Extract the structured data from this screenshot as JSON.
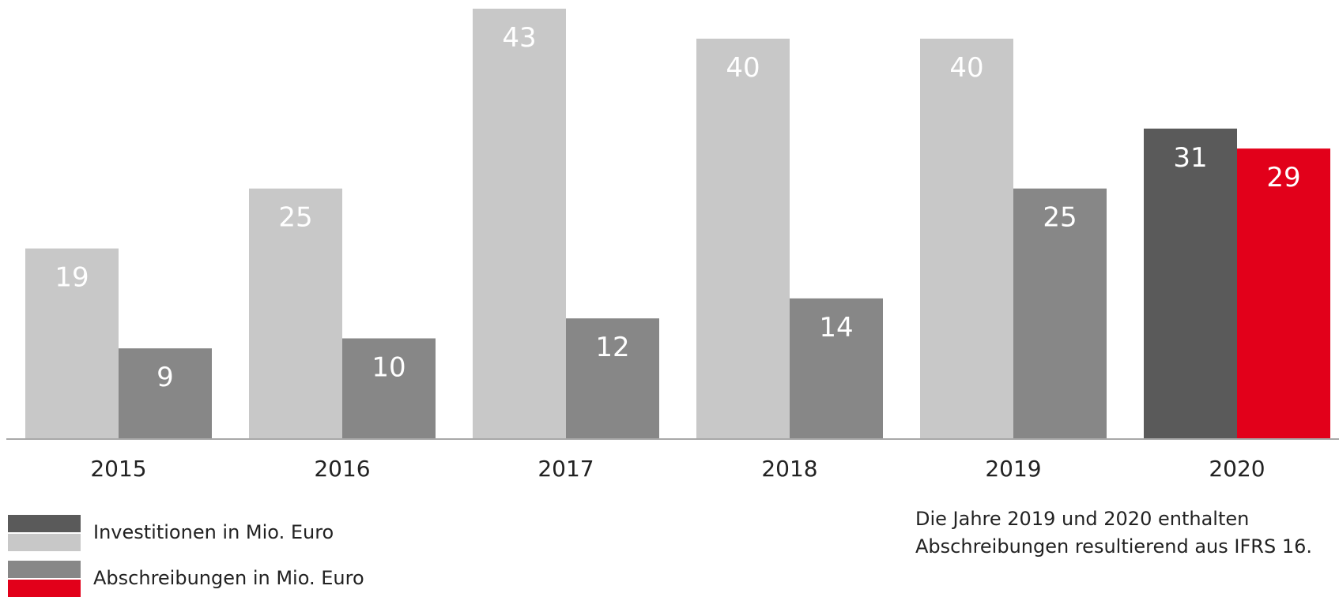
{
  "chart_data": {
    "type": "bar",
    "title": "",
    "xlabel": "",
    "ylabel": "",
    "ylim": [
      0,
      43
    ],
    "grid": false,
    "categories": [
      "2015",
      "2016",
      "2017",
      "2018",
      "2019",
      "2020"
    ],
    "series": [
      {
        "name": "Investitionen in Mio. Euro",
        "values": [
          19,
          25,
          43,
          40,
          40,
          31
        ],
        "colors": [
          "#c8c8c8",
          "#c8c8c8",
          "#c8c8c8",
          "#c8c8c8",
          "#c8c8c8",
          "#5a5a5a"
        ]
      },
      {
        "name": "Abschreibungen in Mio. Euro",
        "values": [
          9,
          10,
          12,
          14,
          25,
          29
        ],
        "colors": [
          "#878787",
          "#878787",
          "#878787",
          "#878787",
          "#878787",
          "#e2001a"
        ]
      }
    ],
    "legend_position": "bottom-left"
  },
  "legend": [
    {
      "label": "Investitionen in Mio. Euro",
      "colors": [
        "#5a5a5a",
        "#c8c8c8"
      ]
    },
    {
      "label": "Abschreibungen in Mio. Euro",
      "colors": [
        "#878787",
        "#e2001a"
      ]
    }
  ],
  "note": {
    "line1": "Die Jahre 2019 und 2020 enthalten",
    "line2": "Abschreibungen resultierend aus IFRS 16."
  }
}
